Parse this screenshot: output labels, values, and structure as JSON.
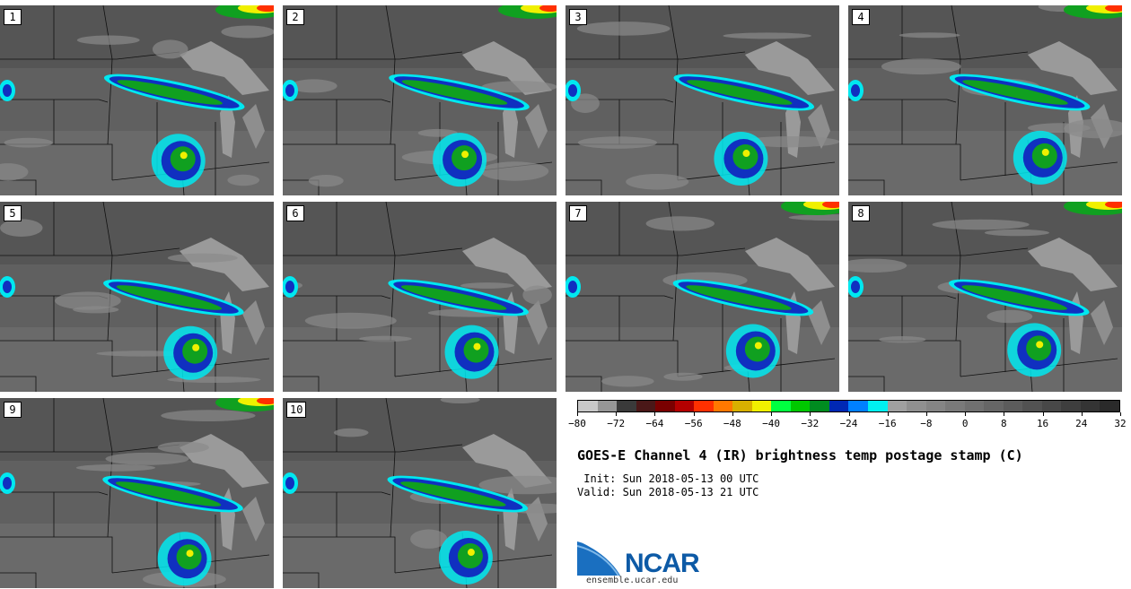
{
  "panels": [
    {
      "label": "1"
    },
    {
      "label": "2"
    },
    {
      "label": "3"
    },
    {
      "label": "4"
    },
    {
      "label": "5"
    },
    {
      "label": "6"
    },
    {
      "label": "7"
    },
    {
      "label": "8"
    },
    {
      "label": "9"
    },
    {
      "label": "10"
    }
  ],
  "colorbar": {
    "colors": [
      "#c8c8c8",
      "#969696",
      "#3a3a3a",
      "#4a1818",
      "#7a0000",
      "#b40000",
      "#ff3000",
      "#ff7800",
      "#d8b000",
      "#f0f000",
      "#00ff40",
      "#00c800",
      "#008c20",
      "#0028b4",
      "#0080ff",
      "#00f0f0",
      "#a0a0a0",
      "#909090",
      "#858585",
      "#7a7a7a",
      "#707070",
      "#666666",
      "#5c5c5c",
      "#525252",
      "#484848",
      "#3e3e3e",
      "#343434",
      "#2a2a2a"
    ],
    "ticks": [
      "−80",
      "−72",
      "−64",
      "−56",
      "−48",
      "−40",
      "−32",
      "−24",
      "−16",
      "−8",
      "0",
      "8",
      "16",
      "24",
      "32"
    ]
  },
  "title": "GOES-E Channel 4 (IR) brightness temp postage stamp (C)",
  "init": " Init: Sun 2018-05-13 00 UTC",
  "valid": "Valid: Sun 2018-05-13 21 UTC",
  "logo": {
    "text": "NCAR",
    "site": "ensemble.ucar.edu"
  }
}
